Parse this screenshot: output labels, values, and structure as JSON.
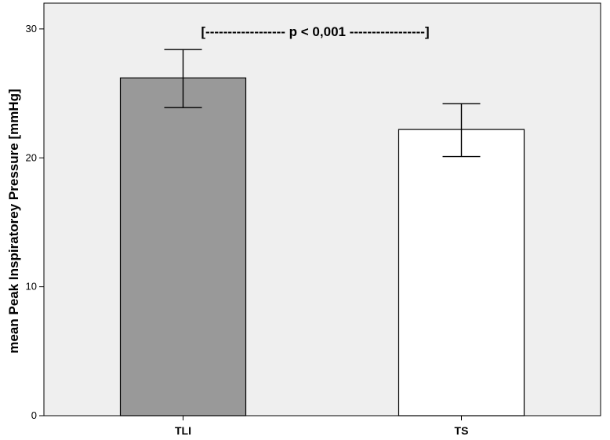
{
  "chart_data": {
    "type": "bar",
    "categories": [
      "TLI",
      "TS"
    ],
    "values": [
      26.2,
      22.2
    ],
    "error_bars": {
      "lower": [
        23.9,
        20.1
      ],
      "upper": [
        28.4,
        24.2
      ]
    },
    "bar_colors": [
      "#999999",
      "#ffffff"
    ],
    "plot_background": "#efefef",
    "ylabel": "mean Peak Inspiratorey Pressure [mmHg]",
    "xlabel": "",
    "ylim": [
      0,
      32
    ],
    "yticks": [
      0,
      10,
      20,
      30
    ],
    "grid": false,
    "annotation": "[------------------ p < 0,001 -----------------]"
  }
}
